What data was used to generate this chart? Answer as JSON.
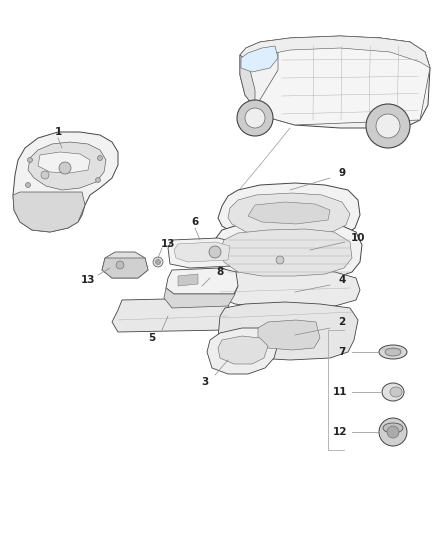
{
  "bg_color": "#ffffff",
  "line_color": "#555555",
  "fig_width": 4.38,
  "fig_height": 5.33,
  "dpi": 100,
  "lw_main": 0.6,
  "lw_detail": 0.35,
  "gray_fill": "#e8e8e8",
  "light_fill": "#f2f2f2",
  "white_fill": "#ffffff"
}
